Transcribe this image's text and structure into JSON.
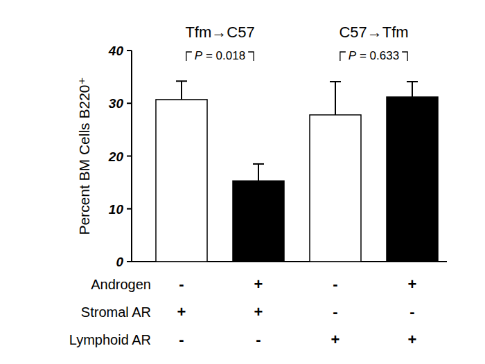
{
  "chart_data": {
    "type": "bar",
    "y_label": "Percent BM Cells B220⁺",
    "categories": [
      null,
      null,
      null,
      null
    ],
    "values": [
      30.7,
      15.3,
      27.8,
      31.2
    ],
    "errors": [
      3.5,
      3.2,
      6.3,
      2.9
    ],
    "colors": [
      "#ffffff",
      "#000000",
      "#ffffff",
      "#000000"
    ],
    "ylim": [
      0,
      40
    ],
    "yticks": [
      0,
      10,
      20,
      30,
      40
    ],
    "grid": false,
    "groups": [
      {
        "label": "Tfm→C57",
        "p": "P = 0.018"
      },
      {
        "label": "C57→Tfm",
        "p": "P = 0.633"
      }
    ],
    "conditions": [
      {
        "label": "Androgen",
        "values": [
          "-",
          "+",
          "-",
          "+"
        ]
      },
      {
        "label": "Stromal AR",
        "values": [
          "+",
          "+",
          "-",
          "-"
        ]
      },
      {
        "label": "Lymphoid AR",
        "values": [
          "-",
          "-",
          "+",
          "+"
        ]
      }
    ]
  }
}
